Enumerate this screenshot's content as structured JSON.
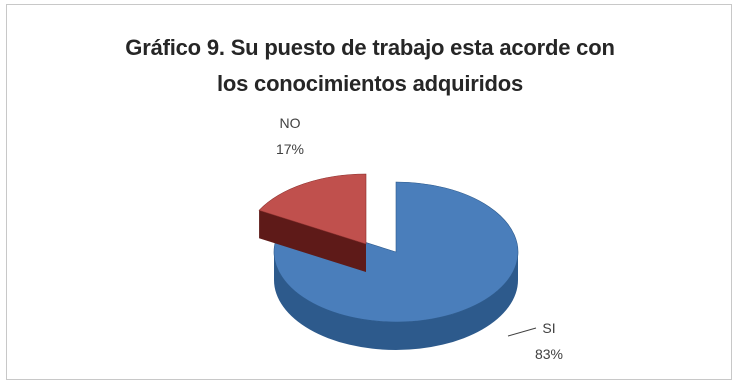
{
  "chart_data": {
    "type": "pie",
    "style": "3d-exploded",
    "title_lines": [
      "Gráfico 9. Su puesto de trabajo esta acorde con",
      "los conocimientos adquiridos"
    ],
    "slices": [
      {
        "label": "SI",
        "percent_label": "83%",
        "value": 83,
        "color": "#4a7ebb",
        "dark": "#2d5a8c",
        "darker": "#1f4570"
      },
      {
        "label": "NO",
        "percent_label": "17%",
        "value": 17,
        "color": "#c0504d",
        "dark": "#8c2f2c",
        "darker": "#5e1a18"
      }
    ],
    "legend": "none"
  }
}
